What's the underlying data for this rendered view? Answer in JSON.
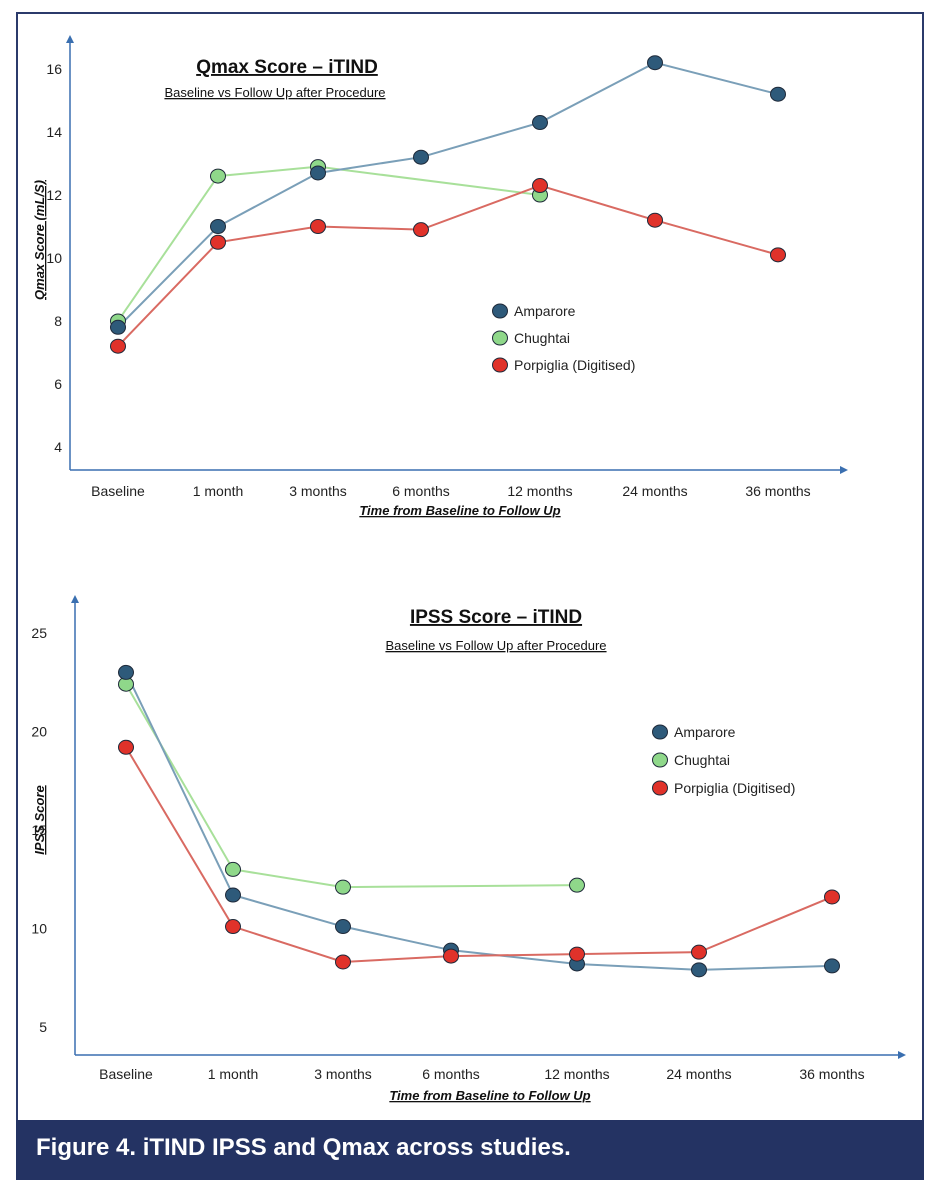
{
  "figure": {
    "caption": "Figure 4.  iTIND IPSS and Qmax across studies."
  },
  "colors": {
    "frame": "#2b3a6b",
    "axis": "#3a6fb0",
    "amparore": "#2e5a7a",
    "chughtai": "#8fd88a",
    "porpiglia": "#e0322a",
    "line_amparore": "#7a9fb8",
    "line_chughtai": "#a8e09a",
    "line_porpiglia": "#d96a62"
  },
  "chart_data": [
    {
      "type": "line",
      "title": "Qmax Score – iTIND",
      "subtitle": "Baseline vs Follow Up after Procedure",
      "xlabel": "Time from Baseline to Follow Up",
      "ylabel": "Qmax  Score (mL/S)",
      "categories": [
        "Baseline",
        "1 month",
        "3 months",
        "6 months",
        "12 months",
        "24 months",
        "36 months"
      ],
      "y_ticks": [
        4,
        6,
        8,
        10,
        12,
        14,
        16
      ],
      "ylim": [
        3,
        17
      ],
      "legend_position": "center-right",
      "series": [
        {
          "name": "Amparore",
          "color_key": "amparore",
          "values": [
            7.8,
            11.0,
            12.7,
            13.2,
            14.3,
            16.2,
            15.2
          ]
        },
        {
          "name": "Chughtai",
          "color_key": "chughtai",
          "values": [
            8.0,
            12.6,
            12.9,
            null,
            12.0,
            null,
            null
          ]
        },
        {
          "name": "Porpiglia (Digitised)",
          "color_key": "porpiglia",
          "values": [
            7.2,
            10.5,
            11.0,
            10.9,
            12.3,
            11.2,
            10.1
          ]
        }
      ]
    },
    {
      "type": "line",
      "title": "IPSS Score – iTIND",
      "subtitle": "Baseline vs Follow Up after Procedure",
      "xlabel": "Time from Baseline to Follow Up",
      "ylabel": "IPSS Score",
      "categories": [
        "Baseline",
        "1 month",
        "3 months",
        "6 months",
        "12 months",
        "24 months",
        "36 months"
      ],
      "y_ticks": [
        5,
        10,
        15,
        20,
        25
      ],
      "ylim": [
        3,
        27
      ],
      "legend_position": "center-right",
      "series": [
        {
          "name": "Amparore",
          "color_key": "amparore",
          "values": [
            23.0,
            11.7,
            10.1,
            8.9,
            8.2,
            7.9,
            8.1
          ]
        },
        {
          "name": "Chughtai",
          "color_key": "chughtai",
          "values": [
            22.4,
            13.0,
            12.1,
            null,
            12.2,
            null,
            null
          ]
        },
        {
          "name": "Porpiglia (Digitised)",
          "color_key": "porpiglia",
          "values": [
            19.2,
            10.1,
            8.3,
            8.6,
            8.7,
            8.8,
            11.6
          ]
        }
      ]
    }
  ]
}
